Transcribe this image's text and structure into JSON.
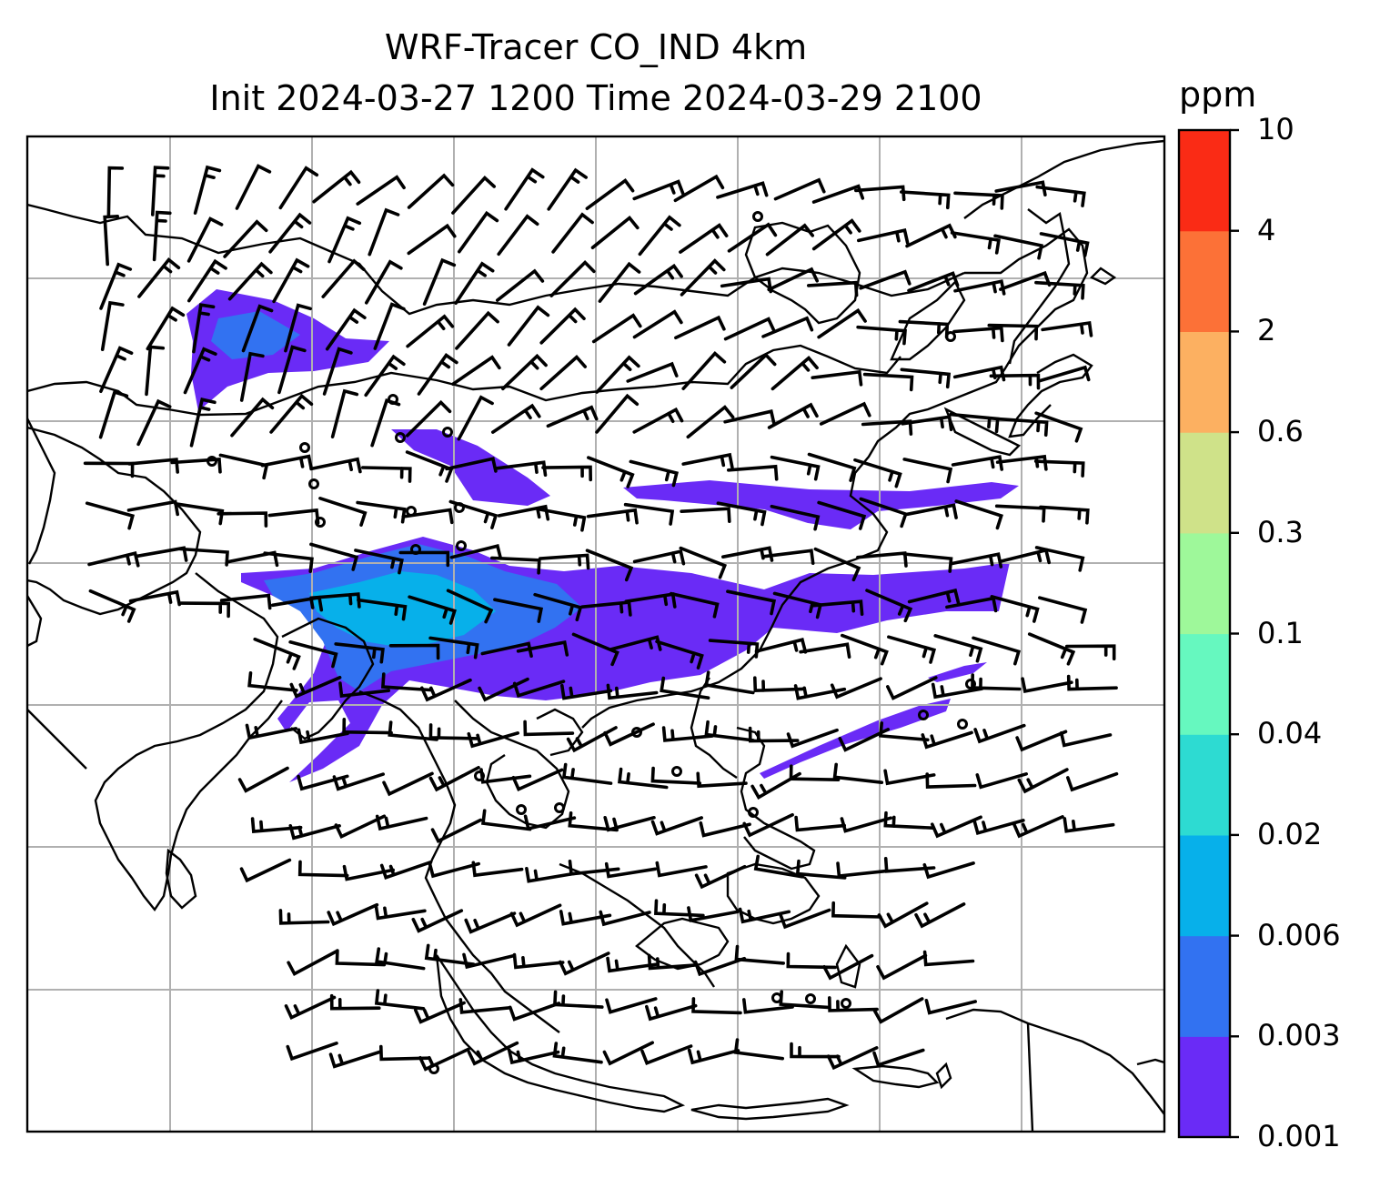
{
  "title": {
    "line1": "WRF-Tracer CO_IND 4km",
    "line2": "Init 2024-03-27 1200 Time 2024-03-29 2100"
  },
  "colorbar": {
    "unit": "ppm",
    "ticks": [
      "0.001",
      "0.003",
      "0.006",
      "0.02",
      "0.04",
      "0.1",
      "0.3",
      "0.6",
      "2",
      "4",
      "10"
    ],
    "colors": [
      "#6a2bf6",
      "#3272f1",
      "#07b0ea",
      "#2ddbd2",
      "#66f8bf",
      "#9ef89a",
      "#cfe289",
      "#fcb061",
      "#fc7137",
      "#fa2b15"
    ]
  },
  "map": {
    "frame_color": "#000000",
    "grid_color": "#b0b0b0",
    "coastline_color": "#000000",
    "wind_barb_color": "#000000",
    "gridlines": true
  }
}
